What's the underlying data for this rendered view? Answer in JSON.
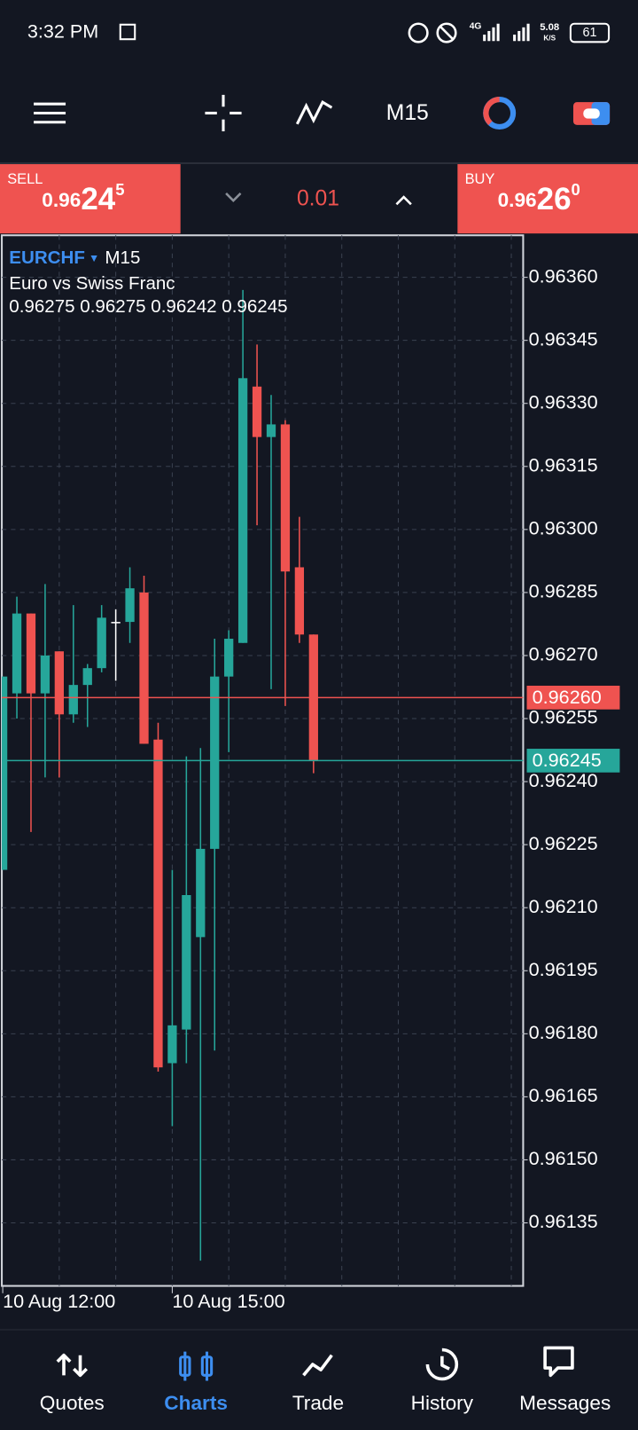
{
  "status_bar": {
    "time": "3:32 PM",
    "network": "4G",
    "speed": "5.08",
    "speed_unit": "K/S",
    "battery": "61"
  },
  "trade_panel": {
    "sell": {
      "label": "SELL",
      "prefix": "0.96",
      "big": "24",
      "sup": "5"
    },
    "buy": {
      "label": "BUY",
      "prefix": "0.96",
      "big": "26",
      "sup": "0"
    },
    "volume": "0.01"
  },
  "chart_data": {
    "type": "candlestick",
    "symbol": "EURCHF",
    "timeframe": "M15",
    "subtitle": "Euro vs Swiss Franc",
    "ohlc_text": "0.96275 0.96275 0.96242 0.96245",
    "categories": [
      "10 Aug 12:00",
      null,
      null,
      null,
      null,
      null,
      null,
      null,
      null,
      null,
      null,
      null,
      "10 Aug 15:00",
      null,
      null,
      null,
      null,
      null,
      null,
      null,
      null,
      null,
      null
    ],
    "open": [
      0.96219,
      0.96261,
      0.9628,
      0.96261,
      0.96271,
      0.96256,
      0.96263,
      0.96267,
      0.96278,
      0.96278,
      0.96285,
      0.9625,
      0.96173,
      0.96181,
      0.96203,
      0.96224,
      0.96265,
      0.96273,
      0.96334,
      0.96322,
      0.96325,
      0.96291,
      0.96275
    ],
    "high": [
      0.96265,
      0.96284,
      0.9628,
      0.96287,
      0.96271,
      0.96282,
      0.96268,
      0.96282,
      0.96281,
      0.96291,
      0.96289,
      0.96254,
      0.96219,
      0.96246,
      0.96248,
      0.96274,
      0.96276,
      0.96357,
      0.96344,
      0.96332,
      0.96326,
      0.96303,
      0.96275
    ],
    "low": [
      0.96219,
      0.96255,
      0.96228,
      0.96241,
      0.96241,
      0.96254,
      0.96253,
      0.96266,
      0.96264,
      0.96273,
      0.96249,
      0.96171,
      0.96158,
      0.96173,
      0.96126,
      0.96176,
      0.96247,
      0.96273,
      0.96301,
      0.96262,
      0.96258,
      0.96273,
      0.96242
    ],
    "close": [
      0.96265,
      0.9628,
      0.96261,
      0.9627,
      0.96256,
      0.96263,
      0.96267,
      0.96279,
      0.96278,
      0.96286,
      0.96249,
      0.96172,
      0.96182,
      0.96213,
      0.96224,
      0.96265,
      0.96274,
      0.96336,
      0.96322,
      0.96325,
      0.9629,
      0.96275,
      0.96245
    ],
    "up_color": "#26a69a",
    "down_color": "#ef5350",
    "doji_color": "#ffffff",
    "ylim": [
      0.9612,
      0.9637
    ],
    "yticks": [
      {
        "value": 0.9636,
        "label": "0.96360"
      },
      {
        "value": 0.96345,
        "label": "0.96345"
      },
      {
        "value": 0.9633,
        "label": "0.96330"
      },
      {
        "value": 0.96315,
        "label": "0.96315"
      },
      {
        "value": 0.963,
        "label": "0.96300"
      },
      {
        "value": 0.96285,
        "label": "0.96285"
      },
      {
        "value": 0.9627,
        "label": "0.96270"
      },
      {
        "value": 0.96255,
        "label": "0.96255"
      },
      {
        "value": 0.9624,
        "label": "0.96240"
      },
      {
        "value": 0.96225,
        "label": "0.96225"
      },
      {
        "value": 0.9621,
        "label": "0.96210"
      },
      {
        "value": 0.96195,
        "label": "0.96195"
      },
      {
        "value": 0.9618,
        "label": "0.96180"
      },
      {
        "value": 0.96165,
        "label": "0.96165"
      },
      {
        "value": 0.9615,
        "label": "0.96150"
      },
      {
        "value": 0.96135,
        "label": "0.96135"
      }
    ],
    "grid": true,
    "ask": {
      "value": 0.9626,
      "label": "0.96260",
      "color": "#ef5350"
    },
    "bid": {
      "value": 0.96245,
      "label": "0.96245",
      "color": "#26a69a"
    }
  },
  "nav": {
    "items": [
      "Quotes",
      "Charts",
      "Trade",
      "History",
      "Messages"
    ],
    "active": 1
  }
}
